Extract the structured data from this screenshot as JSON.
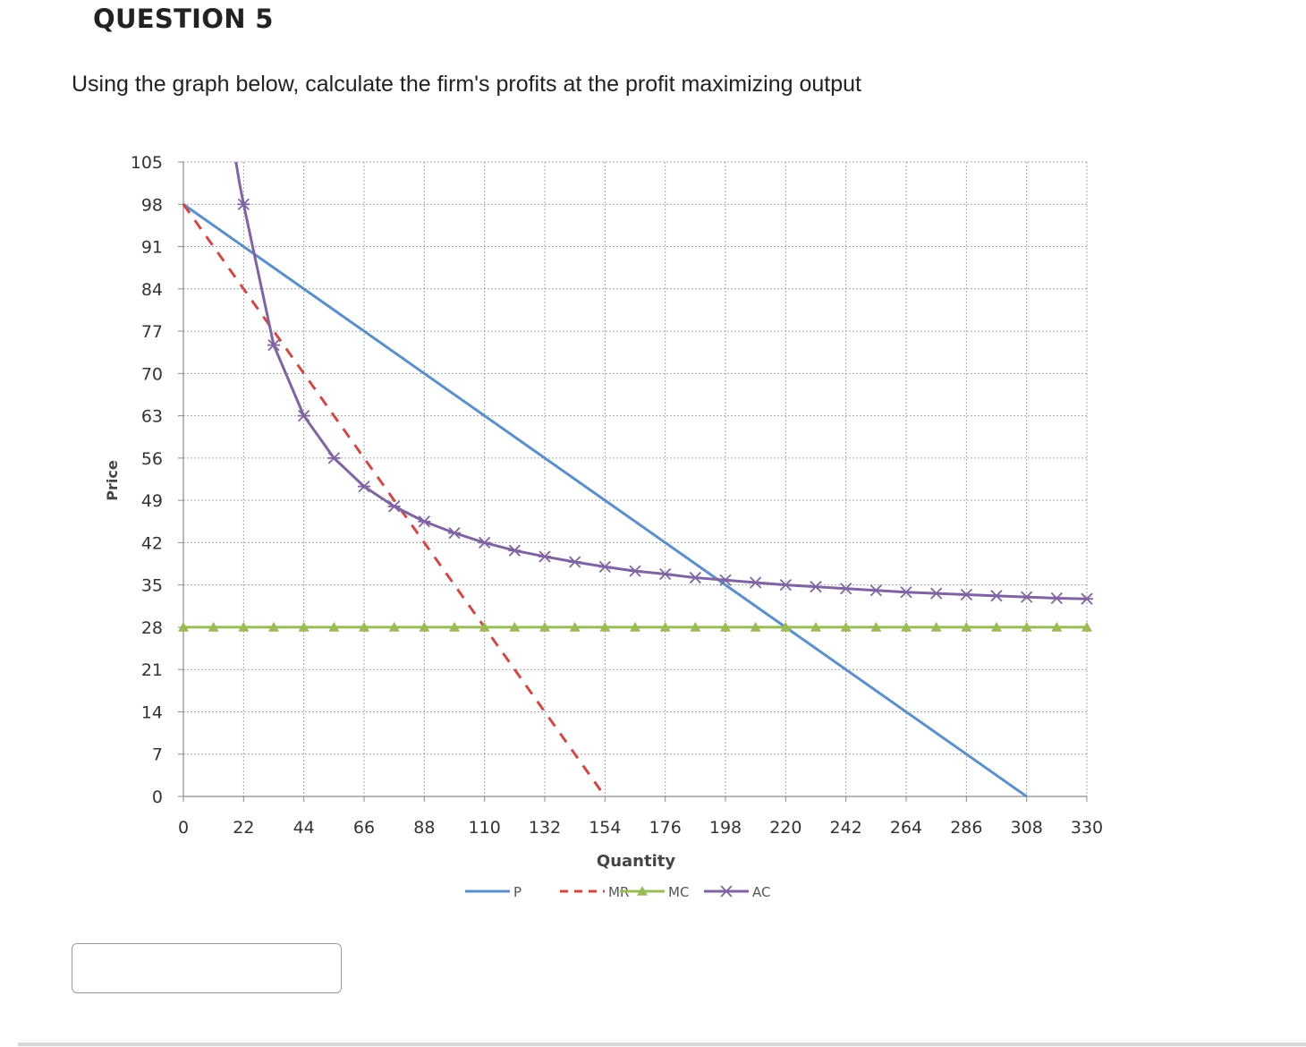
{
  "question": {
    "title": "QUESTION 5",
    "text": "Using the graph below, calculate the firm's profits at the profit maximizing output"
  },
  "answer": {
    "value": "",
    "placeholder": ""
  },
  "chart_data": {
    "type": "line",
    "title": "",
    "xlabel": "Quantity",
    "ylabel": "Price",
    "xlim": [
      0,
      330
    ],
    "ylim": [
      0,
      105
    ],
    "x_ticks": [
      0,
      22,
      44,
      66,
      88,
      110,
      132,
      154,
      176,
      198,
      220,
      242,
      264,
      286,
      308,
      330
    ],
    "y_ticks": [
      0,
      7,
      14,
      21,
      28,
      35,
      42,
      49,
      56,
      63,
      70,
      77,
      84,
      91,
      98,
      105
    ],
    "grid": true,
    "legend_position": "bottom",
    "series": [
      {
        "name": "P",
        "color": "#5b8fc9",
        "style": "solid",
        "marker": "none",
        "points": [
          [
            0,
            98
          ],
          [
            308,
            0
          ]
        ]
      },
      {
        "name": "MR",
        "color": "#cd4a47",
        "style": "dashed",
        "marker": "none",
        "points": [
          [
            0,
            98
          ],
          [
            154,
            0
          ]
        ]
      },
      {
        "name": "MC",
        "color": "#9bbb59",
        "style": "solid",
        "marker": "triangle",
        "points": [
          [
            0,
            28
          ],
          [
            11,
            28
          ],
          [
            22,
            28
          ],
          [
            33,
            28
          ],
          [
            44,
            28
          ],
          [
            55,
            28
          ],
          [
            66,
            28
          ],
          [
            77,
            28
          ],
          [
            88,
            28
          ],
          [
            99,
            28
          ],
          [
            110,
            28
          ],
          [
            121,
            28
          ],
          [
            132,
            28
          ],
          [
            143,
            28
          ],
          [
            154,
            28
          ],
          [
            165,
            28
          ],
          [
            176,
            28
          ],
          [
            187,
            28
          ],
          [
            198,
            28
          ],
          [
            209,
            28
          ],
          [
            220,
            28
          ],
          [
            231,
            28
          ],
          [
            242,
            28
          ],
          [
            253,
            28
          ],
          [
            264,
            28
          ],
          [
            275,
            28
          ],
          [
            286,
            28
          ],
          [
            297,
            28
          ],
          [
            308,
            28
          ],
          [
            319,
            28
          ],
          [
            330,
            28
          ]
        ]
      },
      {
        "name": "AC",
        "color": "#8064a2",
        "style": "solid",
        "marker": "x",
        "points": [
          [
            22,
            98
          ],
          [
            33,
            74.7
          ],
          [
            44,
            63
          ],
          [
            55,
            56
          ],
          [
            66,
            51.3
          ],
          [
            77,
            48
          ],
          [
            88,
            45.5
          ],
          [
            99,
            43.6
          ],
          [
            110,
            42
          ],
          [
            121,
            40.7
          ],
          [
            132,
            39.7
          ],
          [
            143,
            38.8
          ],
          [
            154,
            38
          ],
          [
            165,
            37.3
          ],
          [
            176,
            36.8
          ],
          [
            187,
            36.2
          ],
          [
            198,
            35.8
          ],
          [
            209,
            35.4
          ],
          [
            220,
            35
          ],
          [
            231,
            34.7
          ],
          [
            242,
            34.4
          ],
          [
            253,
            34.1
          ],
          [
            264,
            33.8
          ],
          [
            275,
            33.6
          ],
          [
            286,
            33.4
          ],
          [
            297,
            33.2
          ],
          [
            308,
            33
          ],
          [
            319,
            32.8
          ],
          [
            330,
            32.7
          ]
        ],
        "curve_top": [
          [
            19.2,
            105
          ],
          [
            20.5,
            101.5
          ],
          [
            22,
            98
          ]
        ]
      }
    ]
  }
}
